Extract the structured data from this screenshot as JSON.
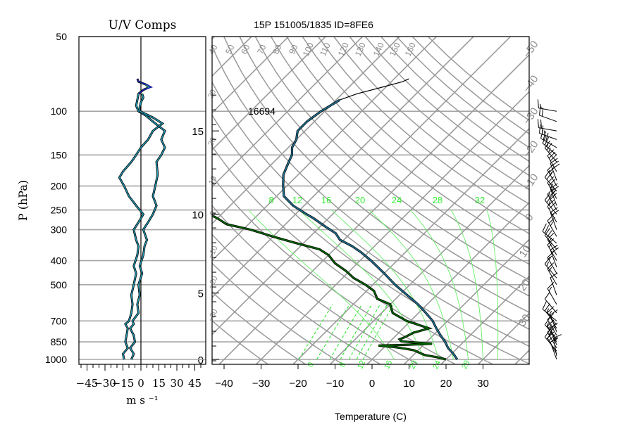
{
  "chart_data": [
    {
      "type": "line",
      "title": "U/V Comps",
      "xlabel": "m s ⁻¹",
      "ylabel": "P (hPa)",
      "y_scale": "log-pressure",
      "ylim": [
        1000,
        50
      ],
      "xlim": [
        -50,
        50
      ],
      "xticks": [
        "−45",
        "−30",
        "−15",
        "0",
        "15",
        "30",
        "45"
      ],
      "xtick_values": [
        -45,
        -30,
        -15,
        0,
        15,
        30,
        45
      ],
      "pressure_levels": [
        1000,
        850,
        700,
        500,
        400,
        300,
        250,
        200,
        150,
        100,
        50
      ],
      "pressure_labels": [
        "1000",
        "850",
        "700",
        "500",
        "400",
        "300",
        "250",
        "200",
        "150",
        "100",
        "50"
      ],
      "series": [
        {
          "color": "#1f5f8a",
          "points": [
            [
              -8,
              1000
            ],
            [
              -6,
              950
            ],
            [
              -9,
              900
            ],
            [
              -5,
              850
            ],
            [
              -6,
              800
            ],
            [
              -9,
              750
            ],
            [
              -6,
              720
            ],
            [
              -7,
              700
            ],
            [
              -2,
              650
            ],
            [
              -3,
              600
            ],
            [
              -1,
              550
            ],
            [
              -2,
              500
            ],
            [
              1,
              450
            ],
            [
              -1,
              420
            ],
            [
              2,
              380
            ],
            [
              3,
              350
            ],
            [
              5,
              330
            ],
            [
              2,
              300
            ],
            [
              6,
              280
            ],
            [
              10,
              260
            ],
            [
              13,
              240
            ],
            [
              10,
              220
            ],
            [
              12,
              200
            ],
            [
              14,
              180
            ],
            [
              13,
              160
            ],
            [
              17,
              150
            ],
            [
              20,
              140
            ],
            [
              17,
              130
            ],
            [
              20,
              120
            ],
            [
              15,
              115
            ],
            [
              10,
              110
            ],
            [
              4,
              104
            ],
            [
              -2,
              100
            ],
            [
              -4,
              95
            ],
            [
              -3,
              90
            ],
            [
              -2,
              85
            ],
            [
              2,
              82
            ],
            [
              7,
              80
            ],
            [
              4,
              78
            ],
            [
              -2,
              76
            ],
            [
              -3,
              74
            ]
          ]
        },
        {
          "color": "#1f5f8a",
          "points": [
            [
              -14,
              1000
            ],
            [
              -15,
              950
            ],
            [
              -11,
              900
            ],
            [
              -13,
              850
            ],
            [
              -12,
              800
            ],
            [
              -11,
              750
            ],
            [
              -13,
              720
            ],
            [
              -10,
              700
            ],
            [
              -8,
              650
            ],
            [
              -7,
              600
            ],
            [
              -8,
              550
            ],
            [
              -6,
              500
            ],
            [
              -4,
              450
            ],
            [
              -6,
              420
            ],
            [
              -3,
              380
            ],
            [
              -2,
              350
            ],
            [
              -4,
              330
            ],
            [
              -6,
              300
            ],
            [
              -2,
              280
            ],
            [
              2,
              260
            ],
            [
              -4,
              240
            ],
            [
              -10,
              220
            ],
            [
              -14,
              200
            ],
            [
              -18,
              185
            ],
            [
              -15,
              175
            ],
            [
              -8,
              160
            ],
            [
              -4,
              150
            ],
            [
              0,
              140
            ],
            [
              6,
              130
            ],
            [
              10,
              120
            ],
            [
              18,
              112
            ],
            [
              10,
              106
            ],
            [
              3,
              102
            ],
            [
              -1,
              100
            ],
            [
              -1,
              96
            ],
            [
              0,
              92
            ],
            [
              2,
              88
            ],
            [
              1,
              85
            ]
          ]
        },
        {
          "color": "#1a1aa6",
          "points": [
            [
              -2,
              85
            ],
            [
              2,
              82
            ],
            [
              9,
              80
            ],
            [
              5,
              78
            ],
            [
              -2,
              76
            ],
            [
              -3,
              74
            ]
          ]
        }
      ]
    },
    {
      "type": "line",
      "chart_kind": "skew-t log-p",
      "title": "15P 151005/1835 ID=8FE6",
      "xlabel": "Temperature (C)",
      "ylabel": "",
      "x_scale": "skewed temperature",
      "y_scale": "log-pressure",
      "ylim": [
        1000,
        50
      ],
      "xlim": [
        -43,
        42
      ],
      "xticks": [
        "−40",
        "−30",
        "−20",
        "−10",
        "0",
        "10",
        "20",
        "30"
      ],
      "xtick_values": [
        -40,
        -30,
        -20,
        -10,
        0,
        10,
        20,
        30
      ],
      "height_ticks_km": [
        "0",
        "5",
        "10",
        "15"
      ],
      "height_tick_pressures": [
        1000,
        540,
        260,
        120
      ],
      "annotation": "16694",
      "annotation_pressure": 100,
      "annotation_temperature": -22,
      "isotherm_labels_top": [
        "40",
        "50",
        "60",
        "70",
        "80",
        "90",
        "100",
        "110",
        "120",
        "130",
        "140",
        "150",
        "160"
      ],
      "isotherm_labels_left": [
        "30",
        "20",
        "10",
        "0",
        "−10",
        "−20",
        "−30"
      ],
      "isotherm_labels_right": [
        "−50",
        "−40",
        "−30",
        "−20",
        "−10",
        "0",
        "10",
        "20",
        "30"
      ],
      "mixing_ratio_labels": [
        "8",
        "12",
        "16",
        "20",
        "24",
        "28",
        "32"
      ],
      "mixing_ratio_values": [
        8,
        12,
        16,
        20,
        24,
        28,
        32
      ],
      "mixing_ratio_label_pressure": 250,
      "moist_adiabat_labels_bottom": [
        "0",
        "8",
        "12",
        "16",
        "20",
        "24",
        "28"
      ],
      "moist_adiabat_values": [
        0,
        8,
        12,
        16,
        20,
        24,
        28
      ],
      "series": [
        {
          "name": "Temperature",
          "color": "#1f6f8f",
          "points": [
            [
              23,
              1000
            ],
            [
              20.5,
              950
            ],
            [
              17.5,
              900
            ],
            [
              15,
              850
            ],
            [
              12,
              800
            ],
            [
              9,
              750
            ],
            [
              6,
              700
            ],
            [
              2,
              650
            ],
            [
              -2.5,
              600
            ],
            [
              -8,
              550
            ],
            [
              -14,
              500
            ],
            [
              -20,
              450
            ],
            [
              -27,
              400
            ],
            [
              -32,
              370
            ],
            [
              -36,
              350
            ],
            [
              -41,
              330
            ],
            [
              -44,
              310
            ],
            [
              -49,
              290
            ],
            [
              -54,
              270
            ],
            [
              -57,
              260
            ],
            [
              -63,
              240
            ],
            [
              -68,
              220
            ],
            [
              -71,
              200
            ],
            [
              -74,
              180
            ],
            [
              -76,
              160
            ],
            [
              -77,
              150
            ],
            [
              -79,
              140
            ],
            [
              -80,
              130
            ],
            [
              -81,
              125
            ],
            [
              -82,
              120
            ],
            [
              -82,
              110
            ],
            [
              -81,
              100
            ],
            [
              -80,
              95
            ],
            [
              -79,
              90
            ]
          ]
        },
        {
          "name": "Temperature trace",
          "color": "#000000",
          "points": [
            [
              -79,
              90
            ],
            [
              -76,
              85
            ],
            [
              -71,
              80
            ],
            [
              -67,
              76
            ],
            [
              -66,
              74
            ]
          ]
        },
        {
          "name": "Dew point",
          "color": "#006400",
          "points": [
            [
              20,
              1000
            ],
            [
              17,
              980
            ],
            [
              13,
              960
            ],
            [
              11,
              940
            ],
            [
              9,
              920
            ],
            [
              6,
              905
            ],
            [
              2,
              890
            ],
            [
              -2,
              880
            ],
            [
              4,
              875
            ],
            [
              12,
              865
            ],
            [
              7,
              855
            ],
            [
              3,
              845
            ],
            [
              2,
              830
            ],
            [
              3,
              810
            ],
            [
              4,
              780
            ],
            [
              7,
              750
            ],
            [
              -1,
              700
            ],
            [
              -7,
              650
            ],
            [
              -10,
              600
            ],
            [
              -15,
              570
            ],
            [
              -18,
              530
            ],
            [
              -22,
              500
            ],
            [
              -27,
              470
            ],
            [
              -31,
              440
            ],
            [
              -36,
              410
            ],
            [
              -40,
              380
            ],
            [
              -44,
              360
            ],
            [
              -52,
              340
            ],
            [
              -60,
              320
            ],
            [
              -68,
              300
            ],
            [
              -76,
              285
            ],
            [
              -80,
              270
            ],
            [
              -84,
              258
            ]
          ]
        }
      ]
    },
    {
      "type": "scatter",
      "chart_kind": "wind barbs",
      "title": "",
      "xlabel": "",
      "ylabel": "",
      "ylim": [
        1000,
        50
      ],
      "barbs": [
        {
          "p": 1000,
          "speed": 10,
          "dir": 160
        },
        {
          "p": 970,
          "speed": 15,
          "dir": 170
        },
        {
          "p": 950,
          "speed": 20,
          "dir": 150
        },
        {
          "p": 925,
          "speed": 20,
          "dir": 140
        },
        {
          "p": 900,
          "speed": 15,
          "dir": 150
        },
        {
          "p": 875,
          "speed": 15,
          "dir": 160
        },
        {
          "p": 850,
          "speed": 15,
          "dir": 150
        },
        {
          "p": 825,
          "speed": 15,
          "dir": 140
        },
        {
          "p": 800,
          "speed": 10,
          "dir": 150
        },
        {
          "p": 775,
          "speed": 10,
          "dir": 160
        },
        {
          "p": 750,
          "speed": 15,
          "dir": 150
        },
        {
          "p": 725,
          "speed": 15,
          "dir": 140
        },
        {
          "p": 700,
          "speed": 10,
          "dir": 130
        },
        {
          "p": 650,
          "speed": 10,
          "dir": 140
        },
        {
          "p": 600,
          "speed": 15,
          "dir": 150
        },
        {
          "p": 550,
          "speed": 10,
          "dir": 160
        },
        {
          "p": 500,
          "speed": 15,
          "dir": 150
        },
        {
          "p": 470,
          "speed": 15,
          "dir": 140
        },
        {
          "p": 450,
          "speed": 15,
          "dir": 150
        },
        {
          "p": 425,
          "speed": 20,
          "dir": 160
        },
        {
          "p": 400,
          "speed": 15,
          "dir": 150
        },
        {
          "p": 380,
          "speed": 15,
          "dir": 150
        },
        {
          "p": 360,
          "speed": 20,
          "dir": 140
        },
        {
          "p": 340,
          "speed": 20,
          "dir": 130
        },
        {
          "p": 320,
          "speed": 25,
          "dir": 150
        },
        {
          "p": 300,
          "speed": 20,
          "dir": 160
        },
        {
          "p": 280,
          "speed": 20,
          "dir": 150
        },
        {
          "p": 260,
          "speed": 25,
          "dir": 140
        },
        {
          "p": 250,
          "speed": 30,
          "dir": 150
        },
        {
          "p": 240,
          "speed": 25,
          "dir": 160
        },
        {
          "p": 225,
          "speed": 25,
          "dir": 150
        },
        {
          "p": 210,
          "speed": 20,
          "dir": 140
        },
        {
          "p": 200,
          "speed": 25,
          "dir": 150
        },
        {
          "p": 190,
          "speed": 30,
          "dir": 160
        },
        {
          "p": 175,
          "speed": 30,
          "dir": 150
        },
        {
          "p": 160,
          "speed": 25,
          "dir": 140
        },
        {
          "p": 150,
          "speed": 25,
          "dir": 130
        },
        {
          "p": 140,
          "speed": 30,
          "dir": 120
        },
        {
          "p": 130,
          "speed": 25,
          "dir": 110
        },
        {
          "p": 120,
          "speed": 20,
          "dir": 100
        },
        {
          "p": 110,
          "speed": 20,
          "dir": 110
        },
        {
          "p": 100,
          "speed": 15,
          "dir": 100
        }
      ]
    }
  ]
}
